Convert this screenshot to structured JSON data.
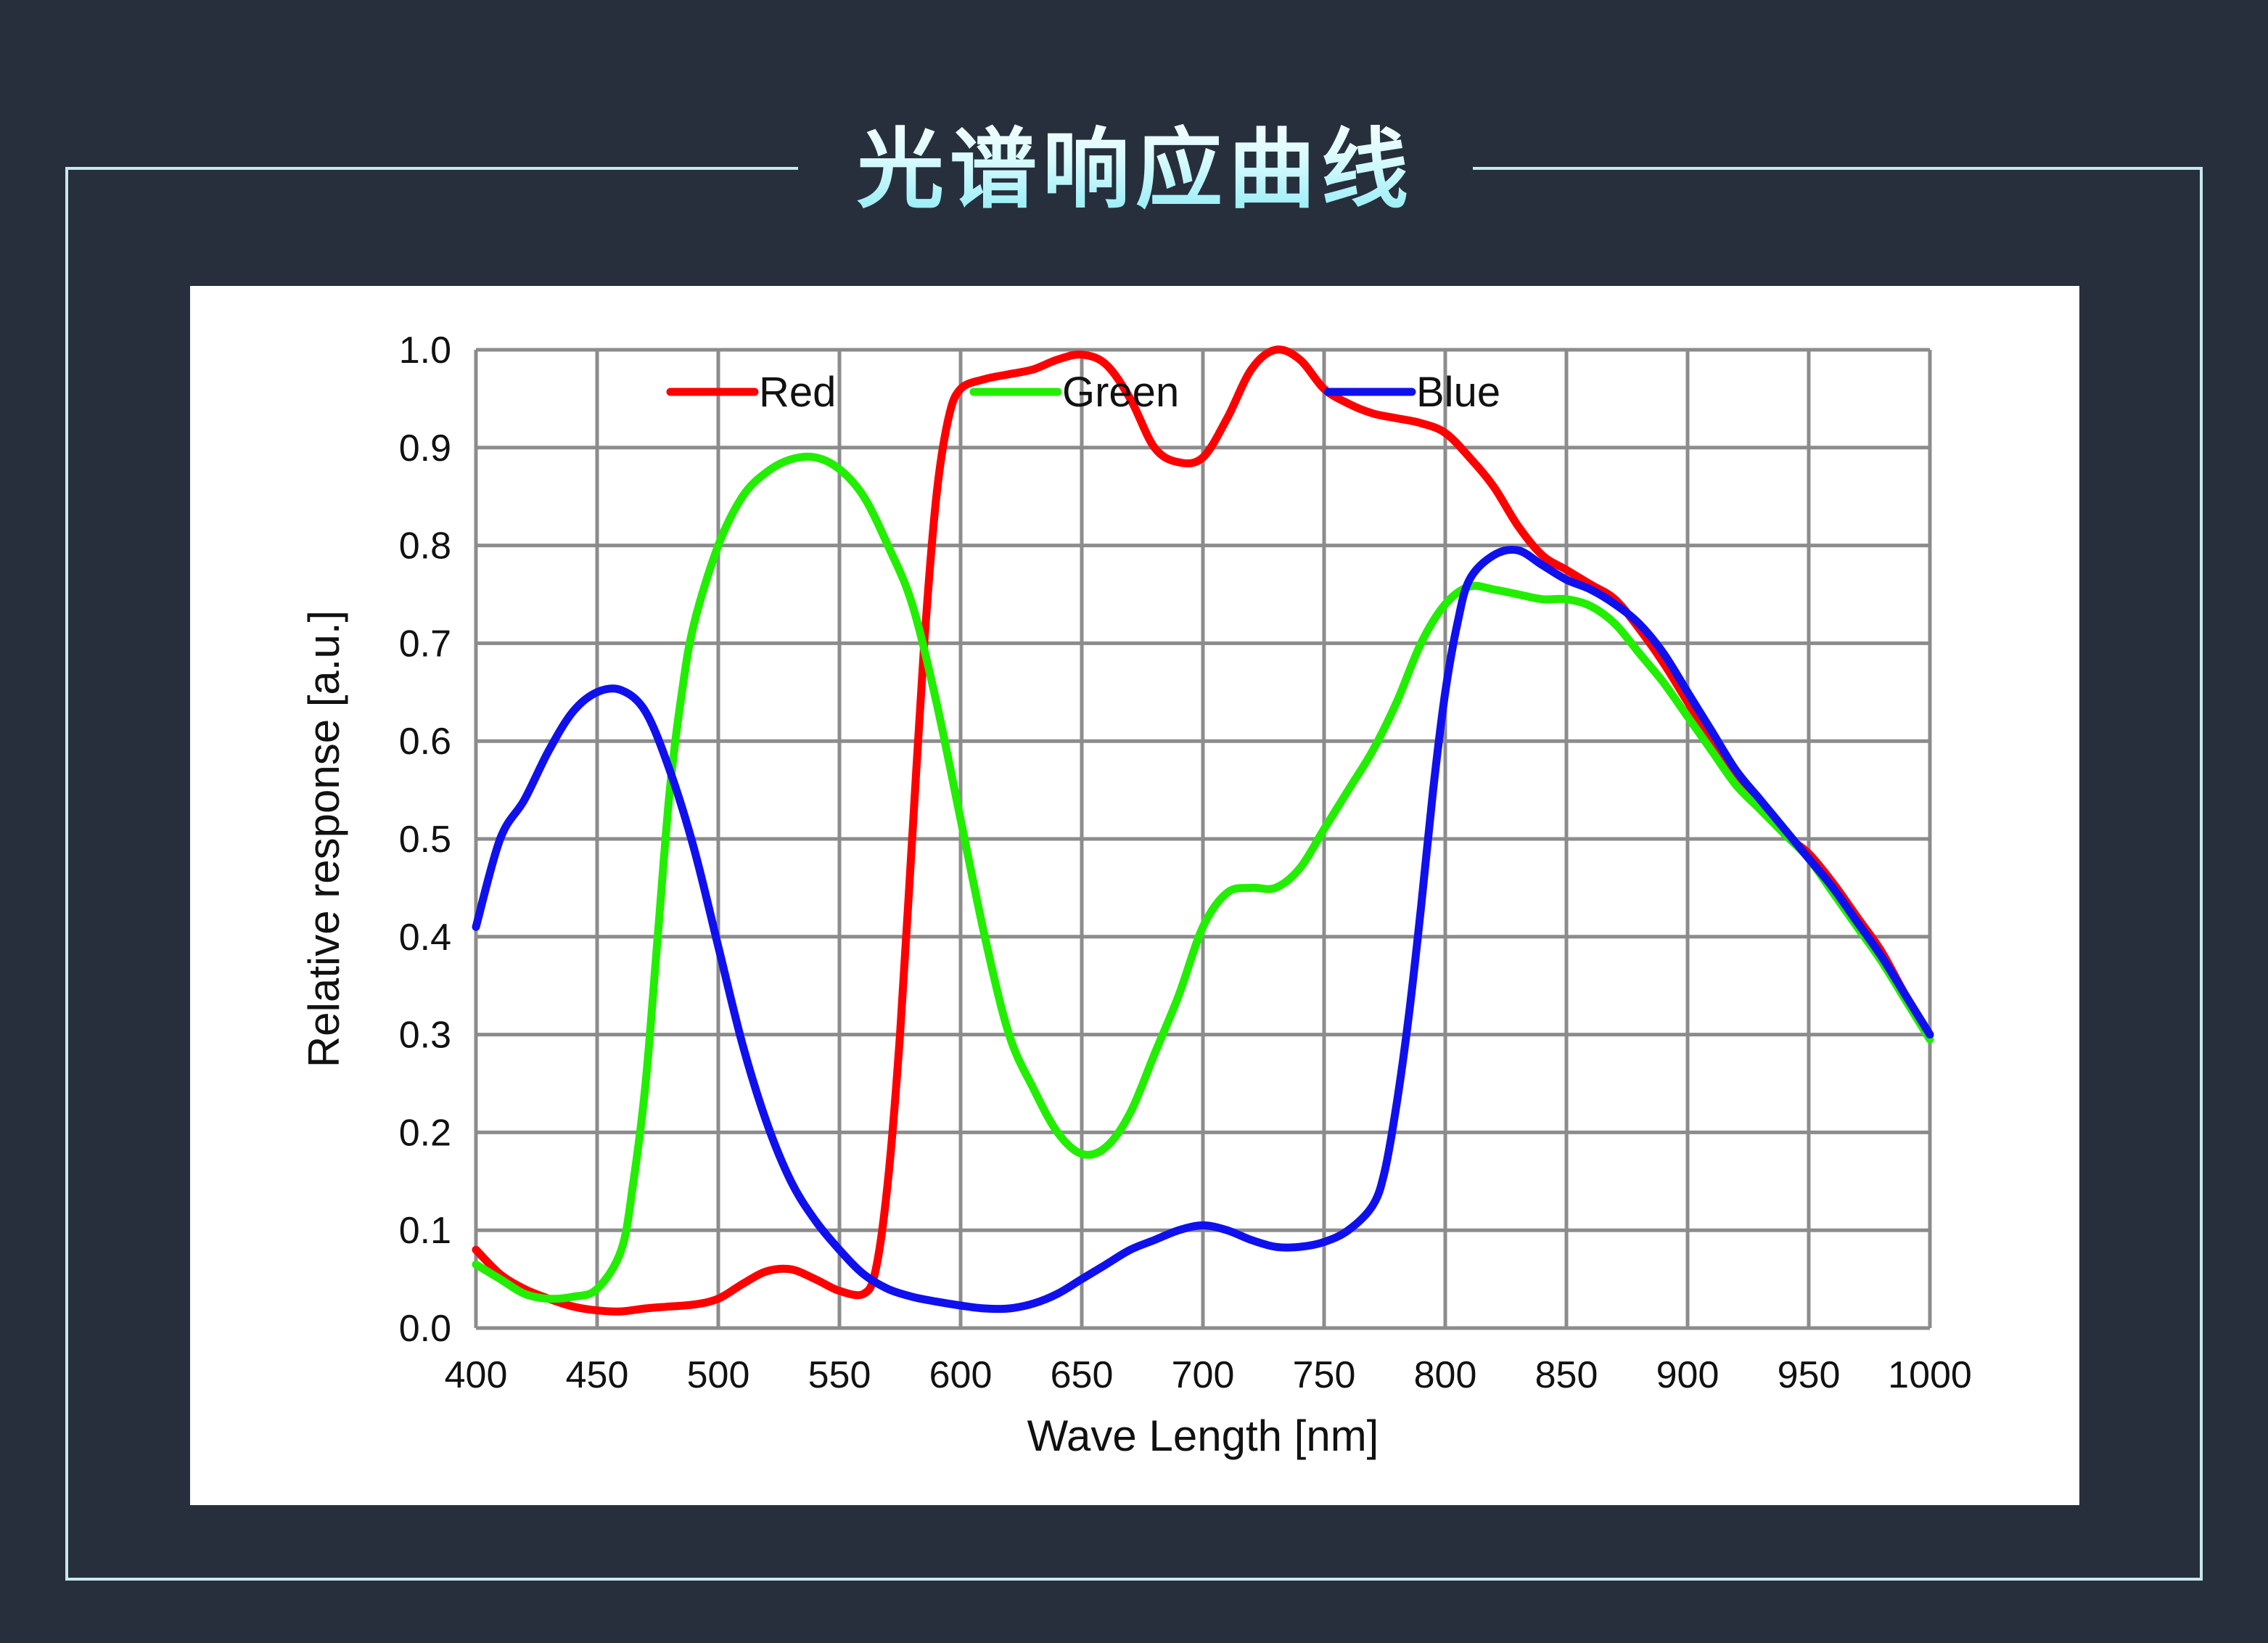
{
  "title": "光谱响应曲线",
  "colors": {
    "background": "#272f3c",
    "frame": "#c7e9ef",
    "panel": "#ffffff",
    "grid": "#8c8c8c",
    "red": "#ff0000",
    "green": "#22ee00",
    "blue": "#1010ee"
  },
  "chart_data": {
    "type": "line",
    "title": "",
    "xlabel": "Wave Length [nm]",
    "ylabel": "Relative response [a.u.]",
    "xlim": [
      400,
      1000
    ],
    "ylim": [
      0.0,
      1.0
    ],
    "x_ticks": [
      "400",
      "450",
      "500",
      "550",
      "600",
      "650",
      "700",
      "750",
      "800",
      "850",
      "900",
      "950",
      "1000"
    ],
    "y_ticks": [
      "0.0",
      "0.1",
      "0.2",
      "0.3",
      "0.4",
      "0.5",
      "0.6",
      "0.7",
      "0.8",
      "0.9",
      "1.0"
    ],
    "grid": true,
    "legend_position": "top",
    "series": [
      {
        "name": "Red",
        "color": "#ff0000",
        "points": [
          [
            400,
            0.08
          ],
          [
            410,
            0.055
          ],
          [
            420,
            0.04
          ],
          [
            430,
            0.03
          ],
          [
            440,
            0.022
          ],
          [
            450,
            0.018
          ],
          [
            460,
            0.017
          ],
          [
            470,
            0.02
          ],
          [
            480,
            0.022
          ],
          [
            490,
            0.024
          ],
          [
            500,
            0.03
          ],
          [
            510,
            0.045
          ],
          [
            520,
            0.058
          ],
          [
            530,
            0.06
          ],
          [
            540,
            0.05
          ],
          [
            550,
            0.038
          ],
          [
            560,
            0.035
          ],
          [
            565,
            0.06
          ],
          [
            570,
            0.15
          ],
          [
            575,
            0.3
          ],
          [
            580,
            0.5
          ],
          [
            585,
            0.7
          ],
          [
            590,
            0.85
          ],
          [
            595,
            0.93
          ],
          [
            600,
            0.96
          ],
          [
            610,
            0.97
          ],
          [
            620,
            0.975
          ],
          [
            630,
            0.98
          ],
          [
            640,
            0.99
          ],
          [
            650,
            0.995
          ],
          [
            660,
            0.985
          ],
          [
            670,
            0.95
          ],
          [
            680,
            0.9
          ],
          [
            690,
            0.885
          ],
          [
            700,
            0.89
          ],
          [
            710,
            0.93
          ],
          [
            720,
            0.98
          ],
          [
            730,
            1.0
          ],
          [
            740,
            0.99
          ],
          [
            750,
            0.96
          ],
          [
            760,
            0.945
          ],
          [
            770,
            0.935
          ],
          [
            780,
            0.93
          ],
          [
            790,
            0.925
          ],
          [
            800,
            0.915
          ],
          [
            810,
            0.89
          ],
          [
            820,
            0.86
          ],
          [
            830,
            0.82
          ],
          [
            840,
            0.79
          ],
          [
            850,
            0.775
          ],
          [
            860,
            0.76
          ],
          [
            870,
            0.745
          ],
          [
            880,
            0.715
          ],
          [
            890,
            0.68
          ],
          [
            900,
            0.64
          ],
          [
            910,
            0.6
          ],
          [
            920,
            0.565
          ],
          [
            930,
            0.535
          ],
          [
            940,
            0.505
          ],
          [
            950,
            0.485
          ],
          [
            960,
            0.455
          ],
          [
            970,
            0.42
          ],
          [
            980,
            0.385
          ],
          [
            990,
            0.34
          ],
          [
            1000,
            0.3
          ]
        ]
      },
      {
        "name": "Green",
        "color": "#22ee00",
        "points": [
          [
            400,
            0.065
          ],
          [
            410,
            0.05
          ],
          [
            420,
            0.035
          ],
          [
            430,
            0.03
          ],
          [
            440,
            0.032
          ],
          [
            450,
            0.04
          ],
          [
            460,
            0.08
          ],
          [
            465,
            0.15
          ],
          [
            470,
            0.25
          ],
          [
            475,
            0.4
          ],
          [
            480,
            0.55
          ],
          [
            485,
            0.65
          ],
          [
            490,
            0.72
          ],
          [
            500,
            0.8
          ],
          [
            510,
            0.85
          ],
          [
            520,
            0.875
          ],
          [
            530,
            0.888
          ],
          [
            540,
            0.89
          ],
          [
            550,
            0.878
          ],
          [
            560,
            0.85
          ],
          [
            570,
            0.8
          ],
          [
            580,
            0.74
          ],
          [
            590,
            0.64
          ],
          [
            600,
            0.52
          ],
          [
            610,
            0.4
          ],
          [
            620,
            0.3
          ],
          [
            630,
            0.245
          ],
          [
            640,
            0.2
          ],
          [
            650,
            0.178
          ],
          [
            660,
            0.185
          ],
          [
            670,
            0.22
          ],
          [
            680,
            0.28
          ],
          [
            690,
            0.34
          ],
          [
            700,
            0.41
          ],
          [
            710,
            0.445
          ],
          [
            720,
            0.45
          ],
          [
            730,
            0.45
          ],
          [
            740,
            0.47
          ],
          [
            750,
            0.51
          ],
          [
            760,
            0.55
          ],
          [
            770,
            0.59
          ],
          [
            780,
            0.64
          ],
          [
            790,
            0.7
          ],
          [
            800,
            0.74
          ],
          [
            810,
            0.758
          ],
          [
            820,
            0.755
          ],
          [
            830,
            0.75
          ],
          [
            840,
            0.745
          ],
          [
            850,
            0.745
          ],
          [
            860,
            0.738
          ],
          [
            870,
            0.72
          ],
          [
            880,
            0.69
          ],
          [
            890,
            0.66
          ],
          [
            900,
            0.625
          ],
          [
            910,
            0.59
          ],
          [
            920,
            0.555
          ],
          [
            930,
            0.53
          ],
          [
            940,
            0.505
          ],
          [
            950,
            0.48
          ],
          [
            960,
            0.445
          ],
          [
            970,
            0.41
          ],
          [
            980,
            0.375
          ],
          [
            990,
            0.335
          ],
          [
            1000,
            0.295
          ]
        ]
      },
      {
        "name": "Blue",
        "color": "#1010ee",
        "points": [
          [
            400,
            0.41
          ],
          [
            410,
            0.5
          ],
          [
            420,
            0.54
          ],
          [
            430,
            0.59
          ],
          [
            440,
            0.63
          ],
          [
            450,
            0.65
          ],
          [
            460,
            0.652
          ],
          [
            470,
            0.63
          ],
          [
            480,
            0.57
          ],
          [
            490,
            0.49
          ],
          [
            500,
            0.39
          ],
          [
            510,
            0.29
          ],
          [
            520,
            0.21
          ],
          [
            530,
            0.15
          ],
          [
            540,
            0.11
          ],
          [
            550,
            0.08
          ],
          [
            560,
            0.055
          ],
          [
            570,
            0.04
          ],
          [
            580,
            0.032
          ],
          [
            590,
            0.027
          ],
          [
            600,
            0.023
          ],
          [
            610,
            0.02
          ],
          [
            620,
            0.02
          ],
          [
            630,
            0.025
          ],
          [
            640,
            0.035
          ],
          [
            650,
            0.05
          ],
          [
            660,
            0.065
          ],
          [
            670,
            0.08
          ],
          [
            680,
            0.09
          ],
          [
            690,
            0.1
          ],
          [
            700,
            0.105
          ],
          [
            710,
            0.1
          ],
          [
            720,
            0.09
          ],
          [
            730,
            0.083
          ],
          [
            740,
            0.083
          ],
          [
            750,
            0.088
          ],
          [
            760,
            0.1
          ],
          [
            770,
            0.125
          ],
          [
            775,
            0.16
          ],
          [
            780,
            0.23
          ],
          [
            785,
            0.32
          ],
          [
            790,
            0.43
          ],
          [
            795,
            0.55
          ],
          [
            800,
            0.65
          ],
          [
            805,
            0.72
          ],
          [
            810,
            0.765
          ],
          [
            820,
            0.79
          ],
          [
            830,
            0.795
          ],
          [
            840,
            0.78
          ],
          [
            850,
            0.765
          ],
          [
            860,
            0.755
          ],
          [
            870,
            0.74
          ],
          [
            880,
            0.72
          ],
          [
            890,
            0.69
          ],
          [
            900,
            0.65
          ],
          [
            910,
            0.61
          ],
          [
            920,
            0.57
          ],
          [
            930,
            0.54
          ],
          [
            940,
            0.51
          ],
          [
            950,
            0.48
          ],
          [
            960,
            0.45
          ],
          [
            970,
            0.415
          ],
          [
            980,
            0.38
          ],
          [
            990,
            0.34
          ],
          [
            1000,
            0.3
          ]
        ]
      }
    ]
  }
}
